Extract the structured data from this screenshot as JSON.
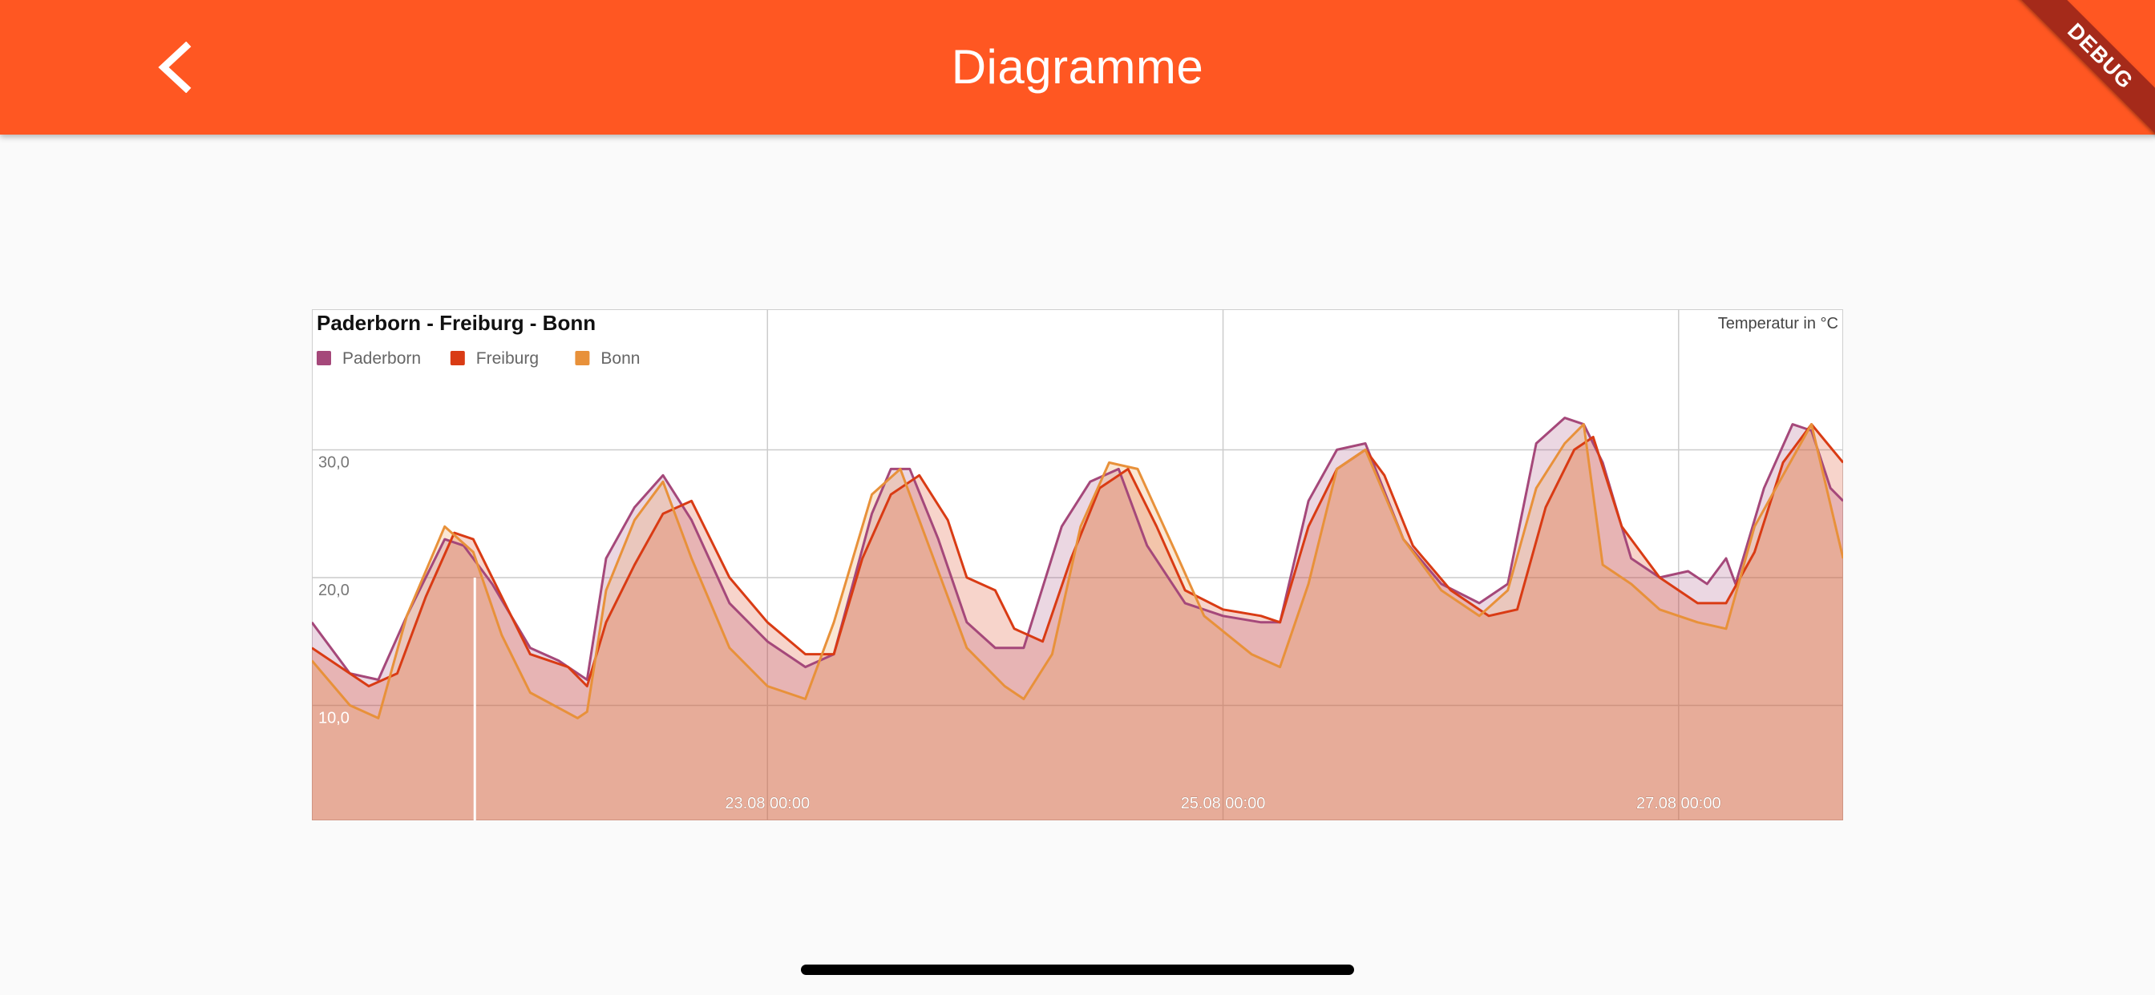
{
  "app": {
    "title": "Diagramme",
    "debug_label": "DEBUG",
    "colors": {
      "appbar": "#ff5722",
      "background": "#fafafa"
    }
  },
  "icons": {
    "back": "chevron-left-icon"
  },
  "chart_data": {
    "type": "area",
    "title": "Paderborn - Freiburg - Bonn",
    "unit_label": "Temperatur in °C",
    "ylim": [
      1,
      41
    ],
    "yticks": [
      10,
      20,
      30
    ],
    "ytick_labels": [
      "10,0",
      "20,0",
      "30,0"
    ],
    "xticks": [
      "23.08 00:00",
      "25.08 00:00",
      "27.08 00:00"
    ],
    "grid": true,
    "legend_position": "top-left",
    "series": [
      {
        "name": "Paderborn",
        "color": "#a5487a",
        "fill": "rgba(165,72,122,0.22)",
        "points": [
          [
            "2020-08-21 00:00",
            16.5
          ],
          [
            "2020-08-21 04:00",
            12.5
          ],
          [
            "2020-08-21 07:00",
            12.0
          ],
          [
            "2020-08-21 10:00",
            17.0
          ],
          [
            "2020-08-21 14:00",
            23.0
          ],
          [
            "2020-08-21 16:00",
            22.5
          ],
          [
            "2020-08-21 19:00",
            19.5
          ],
          [
            "2020-08-21 23:00",
            14.5
          ],
          [
            "2020-08-22 02:00",
            13.5
          ],
          [
            "2020-08-22 05:00",
            12.0
          ],
          [
            "2020-08-22 07:00",
            21.5
          ],
          [
            "2020-08-22 10:00",
            25.5
          ],
          [
            "2020-08-22 13:00",
            28.0
          ],
          [
            "2020-08-22 16:00",
            24.5
          ],
          [
            "2020-08-22 20:00",
            18.0
          ],
          [
            "2020-08-23 00:00",
            15.0
          ],
          [
            "2020-08-23 04:00",
            13.0
          ],
          [
            "2020-08-23 07:00",
            14.0
          ],
          [
            "2020-08-23 11:00",
            25.0
          ],
          [
            "2020-08-23 13:00",
            28.5
          ],
          [
            "2020-08-23 15:00",
            28.5
          ],
          [
            "2020-08-23 18:00",
            23.0
          ],
          [
            "2020-08-23 21:00",
            16.5
          ],
          [
            "2020-08-24 00:00",
            14.5
          ],
          [
            "2020-08-24 03:00",
            14.5
          ],
          [
            "2020-08-24 07:00",
            24.0
          ],
          [
            "2020-08-24 10:00",
            27.5
          ],
          [
            "2020-08-24 13:00",
            28.5
          ],
          [
            "2020-08-24 16:00",
            22.5
          ],
          [
            "2020-08-24 20:00",
            18.0
          ],
          [
            "2020-08-25 00:00",
            17.0
          ],
          [
            "2020-08-25 04:00",
            16.5
          ],
          [
            "2020-08-25 06:00",
            16.5
          ],
          [
            "2020-08-25 09:00",
            26.0
          ],
          [
            "2020-08-25 12:00",
            30.0
          ],
          [
            "2020-08-25 15:00",
            30.5
          ],
          [
            "2020-08-25 19:00",
            23.0
          ],
          [
            "2020-08-25 23:00",
            19.5
          ],
          [
            "2020-08-26 03:00",
            18.0
          ],
          [
            "2020-08-26 06:00",
            19.5
          ],
          [
            "2020-08-26 09:00",
            30.5
          ],
          [
            "2020-08-26 12:00",
            32.5
          ],
          [
            "2020-08-26 14:00",
            32.0
          ],
          [
            "2020-08-26 16:00",
            29.0
          ],
          [
            "2020-08-26 19:00",
            21.5
          ],
          [
            "2020-08-26 22:00",
            20.0
          ],
          [
            "2020-08-27 01:00",
            20.5
          ],
          [
            "2020-08-27 03:00",
            19.5
          ],
          [
            "2020-08-27 05:00",
            21.5
          ],
          [
            "2020-08-27 06:00",
            19.5
          ],
          [
            "2020-08-27 09:00",
            27.0
          ],
          [
            "2020-08-27 12:00",
            32.0
          ],
          [
            "2020-08-27 14:00",
            31.5
          ],
          [
            "2020-08-27 16:00",
            27.0
          ],
          [
            "2020-08-27 17:20",
            26.0
          ]
        ]
      },
      {
        "name": "Freiburg",
        "color": "#d93b14",
        "fill": "rgba(217,59,20,0.22)",
        "points": [
          [
            "2020-08-21 00:00",
            14.5
          ],
          [
            "2020-08-21 03:00",
            13.0
          ],
          [
            "2020-08-21 06:00",
            11.5
          ],
          [
            "2020-08-21 09:00",
            12.5
          ],
          [
            "2020-08-21 12:00",
            18.5
          ],
          [
            "2020-08-21 15:00",
            23.5
          ],
          [
            "2020-08-21 17:00",
            23.0
          ],
          [
            "2020-08-21 20:00",
            18.5
          ],
          [
            "2020-08-21 23:00",
            14.0
          ],
          [
            "2020-08-22 03:00",
            13.0
          ],
          [
            "2020-08-22 05:00",
            11.5
          ],
          [
            "2020-08-22 07:00",
            16.5
          ],
          [
            "2020-08-22 10:00",
            21.0
          ],
          [
            "2020-08-22 13:00",
            25.0
          ],
          [
            "2020-08-22 16:00",
            26.0
          ],
          [
            "2020-08-22 20:00",
            20.0
          ],
          [
            "2020-08-23 00:00",
            16.5
          ],
          [
            "2020-08-23 04:00",
            14.0
          ],
          [
            "2020-08-23 07:00",
            14.0
          ],
          [
            "2020-08-23 10:00",
            21.5
          ],
          [
            "2020-08-23 13:00",
            26.5
          ],
          [
            "2020-08-23 16:00",
            28.0
          ],
          [
            "2020-08-23 19:00",
            24.5
          ],
          [
            "2020-08-23 21:00",
            20.0
          ],
          [
            "2020-08-24 00:00",
            19.0
          ],
          [
            "2020-08-24 02:00",
            16.0
          ],
          [
            "2020-08-24 05:00",
            15.0
          ],
          [
            "2020-08-24 08:00",
            21.5
          ],
          [
            "2020-08-24 11:00",
            27.0
          ],
          [
            "2020-08-24 14:00",
            28.5
          ],
          [
            "2020-08-24 17:00",
            24.0
          ],
          [
            "2020-08-24 20:00",
            19.0
          ],
          [
            "2020-08-25 00:00",
            17.5
          ],
          [
            "2020-08-25 04:00",
            17.0
          ],
          [
            "2020-08-25 06:00",
            16.5
          ],
          [
            "2020-08-25 09:00",
            24.0
          ],
          [
            "2020-08-25 12:00",
            28.5
          ],
          [
            "2020-08-25 15:00",
            30.0
          ],
          [
            "2020-08-25 17:00",
            28.0
          ],
          [
            "2020-08-25 20:00",
            22.5
          ],
          [
            "2020-08-26 00:00",
            19.0
          ],
          [
            "2020-08-26 04:00",
            17.0
          ],
          [
            "2020-08-26 07:00",
            17.5
          ],
          [
            "2020-08-26 10:00",
            25.5
          ],
          [
            "2020-08-26 13:00",
            30.0
          ],
          [
            "2020-08-26 15:00",
            31.0
          ],
          [
            "2020-08-26 18:00",
            24.0
          ],
          [
            "2020-08-26 22:00",
            20.0
          ],
          [
            "2020-08-27 02:00",
            18.0
          ],
          [
            "2020-08-27 05:00",
            18.0
          ],
          [
            "2020-08-27 08:00",
            22.0
          ],
          [
            "2020-08-27 11:00",
            29.0
          ],
          [
            "2020-08-27 14:00",
            32.0
          ],
          [
            "2020-08-27 17:20",
            29.0
          ]
        ]
      },
      {
        "name": "Bonn",
        "color": "#e8913a",
        "fill": "rgba(232,145,58,0.22)",
        "points": [
          [
            "2020-08-21 00:00",
            13.5
          ],
          [
            "2020-08-21 04:00",
            10.0
          ],
          [
            "2020-08-21 07:00",
            9.0
          ],
          [
            "2020-08-21 10:00",
            17.0
          ],
          [
            "2020-08-21 14:00",
            24.0
          ],
          [
            "2020-08-21 17:00",
            22.0
          ],
          [
            "2020-08-21 20:00",
            15.5
          ],
          [
            "2020-08-21 23:00",
            11.0
          ],
          [
            "2020-08-22 04:00",
            9.0
          ],
          [
            "2020-08-22 05:00",
            9.5
          ],
          [
            "2020-08-22 07:00",
            19.0
          ],
          [
            "2020-08-22 10:00",
            24.5
          ],
          [
            "2020-08-22 13:00",
            27.5
          ],
          [
            "2020-08-22 16:00",
            21.5
          ],
          [
            "2020-08-22 20:00",
            14.5
          ],
          [
            "2020-08-23 00:00",
            11.5
          ],
          [
            "2020-08-23 04:00",
            10.5
          ],
          [
            "2020-08-23 07:00",
            16.5
          ],
          [
            "2020-08-23 11:00",
            26.5
          ],
          [
            "2020-08-23 14:00",
            28.5
          ],
          [
            "2020-08-23 17:00",
            22.5
          ],
          [
            "2020-08-23 21:00",
            14.5
          ],
          [
            "2020-08-24 01:00",
            11.5
          ],
          [
            "2020-08-24 03:00",
            10.5
          ],
          [
            "2020-08-24 06:00",
            14.0
          ],
          [
            "2020-08-24 09:00",
            24.0
          ],
          [
            "2020-08-24 12:00",
            29.0
          ],
          [
            "2020-08-24 15:00",
            28.5
          ],
          [
            "2020-08-24 19:00",
            22.0
          ],
          [
            "2020-08-24 22:00",
            17.0
          ],
          [
            "2020-08-25 03:00",
            14.0
          ],
          [
            "2020-08-25 06:00",
            13.0
          ],
          [
            "2020-08-25 09:00",
            19.5
          ],
          [
            "2020-08-25 12:00",
            28.5
          ],
          [
            "2020-08-25 15:00",
            30.0
          ],
          [
            "2020-08-25 19:00",
            23.0
          ],
          [
            "2020-08-25 23:00",
            19.0
          ],
          [
            "2020-08-26 03:00",
            17.0
          ],
          [
            "2020-08-26 06:00",
            19.0
          ],
          [
            "2020-08-26 09:00",
            27.0
          ],
          [
            "2020-08-26 12:00",
            30.5
          ],
          [
            "2020-08-26 14:00",
            32.0
          ],
          [
            "2020-08-26 16:00",
            21.0
          ],
          [
            "2020-08-26 19:00",
            19.5
          ],
          [
            "2020-08-26 22:00",
            17.5
          ],
          [
            "2020-08-27 02:00",
            16.5
          ],
          [
            "2020-08-27 05:00",
            16.0
          ],
          [
            "2020-08-27 08:00",
            24.0
          ],
          [
            "2020-08-27 11:00",
            28.0
          ],
          [
            "2020-08-27 14:00",
            32.0
          ],
          [
            "2020-08-27 17:20",
            21.5
          ]
        ]
      }
    ]
  }
}
